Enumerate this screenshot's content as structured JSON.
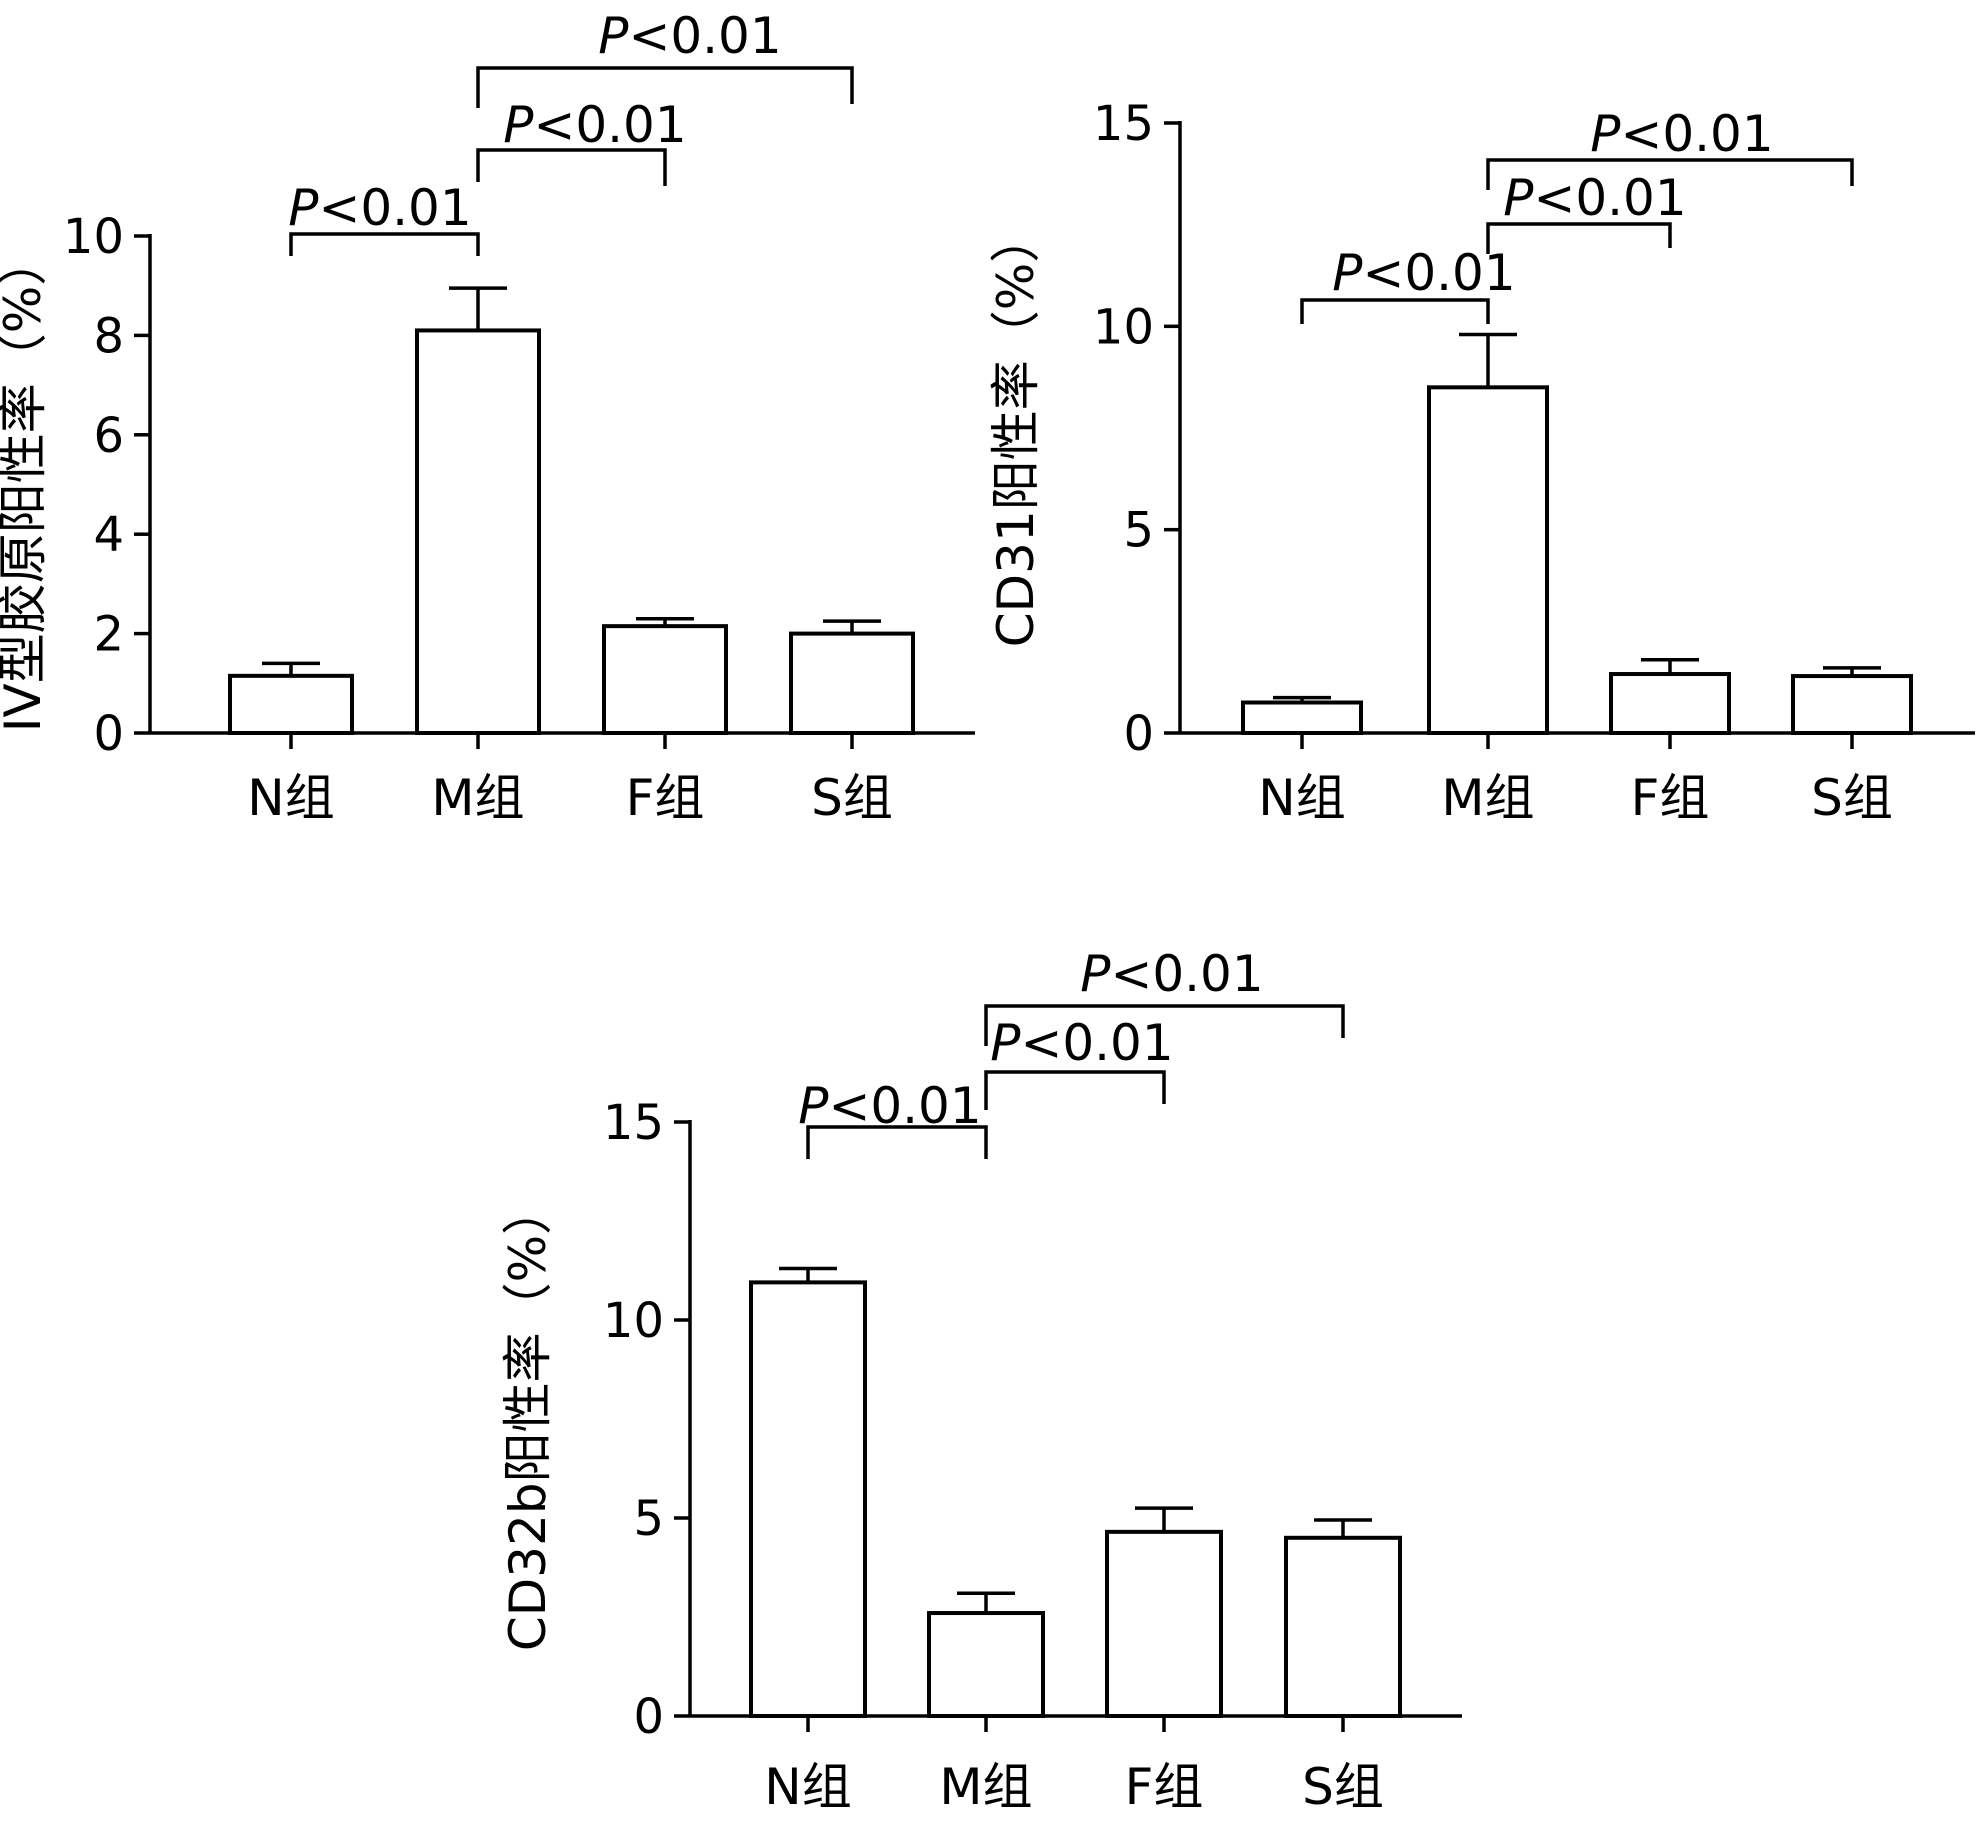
{
  "chart_data": [
    {
      "type": "bar",
      "ylabel": "IV型胶原阳性率（%）",
      "categories": [
        "N组",
        "M组",
        "F组",
        "S组"
      ],
      "values": [
        1.15,
        8.1,
        2.15,
        2.0
      ],
      "errors": [
        0.25,
        0.85,
        0.15,
        0.25
      ],
      "ylim": [
        0,
        10
      ],
      "yticks": [
        "0",
        "2",
        "4",
        "6",
        "8",
        "10"
      ],
      "grid": false,
      "annotations": [
        {
          "from": "N组",
          "to": "M组",
          "text_italic": "P",
          "text": "<0.01"
        },
        {
          "from": "M组",
          "to": "F组",
          "text_italic": "P",
          "text": "<0.01"
        },
        {
          "from": "M组",
          "to": "S组",
          "text_italic": "P",
          "text": "<0.01"
        }
      ]
    },
    {
      "type": "bar",
      "ylabel": "CD31阳性率（%）",
      "categories": [
        "N组",
        "M组",
        "F组",
        "S组"
      ],
      "values": [
        0.75,
        8.5,
        1.45,
        1.4
      ],
      "errors": [
        0.12,
        1.3,
        0.35,
        0.2
      ],
      "ylim": [
        0,
        15
      ],
      "yticks": [
        "0",
        "5",
        "10",
        "15"
      ],
      "grid": false,
      "annotations": [
        {
          "from": "N组",
          "to": "M组",
          "text_italic": "P",
          "text": "<0.01"
        },
        {
          "from": "M组",
          "to": "F组",
          "text_italic": "P",
          "text": "<0.01"
        },
        {
          "from": "M组",
          "to": "S组",
          "text_italic": "P",
          "text": "<0.01"
        }
      ]
    },
    {
      "type": "bar",
      "ylabel": "CD32b阳性率（%）",
      "categories": [
        "N组",
        "M组",
        "F组",
        "S组"
      ],
      "values": [
        10.95,
        2.6,
        4.65,
        4.5
      ],
      "errors": [
        0.35,
        0.5,
        0.6,
        0.45
      ],
      "ylim": [
        0,
        15
      ],
      "yticks": [
        "0",
        "5",
        "10",
        "15"
      ],
      "grid": false,
      "annotations": [
        {
          "from": "N组",
          "to": "M组",
          "text_italic": "P",
          "text": "<0.01"
        },
        {
          "from": "M组",
          "to": "F组",
          "text_italic": "P",
          "text": "<0.01"
        },
        {
          "from": "M组",
          "to": "S组",
          "text_italic": "P",
          "text": "<0.01"
        }
      ]
    }
  ]
}
